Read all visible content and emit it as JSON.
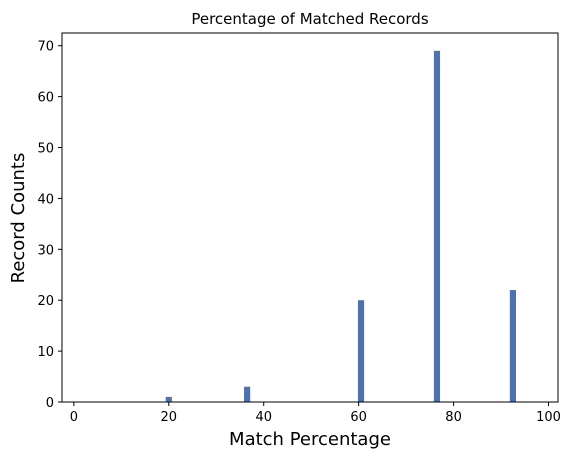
{
  "chart_data": {
    "type": "bar",
    "title": "Percentage of Matched Records",
    "xlabel": "Match Percentage",
    "ylabel": "Record Counts",
    "x": [
      20,
      36.5,
      60.5,
      76.5,
      92.5
    ],
    "values": [
      1,
      3,
      20,
      69,
      22
    ],
    "xlim": [
      -2.5,
      102
    ],
    "ylim": [
      0,
      72.5
    ],
    "xticks": [
      0,
      20,
      40,
      60,
      80,
      100
    ],
    "yticks": [
      0,
      10,
      20,
      30,
      40,
      50,
      60,
      70
    ],
    "bar_width": 1.3,
    "bar_color": "#4c72b0",
    "grid": false
  }
}
